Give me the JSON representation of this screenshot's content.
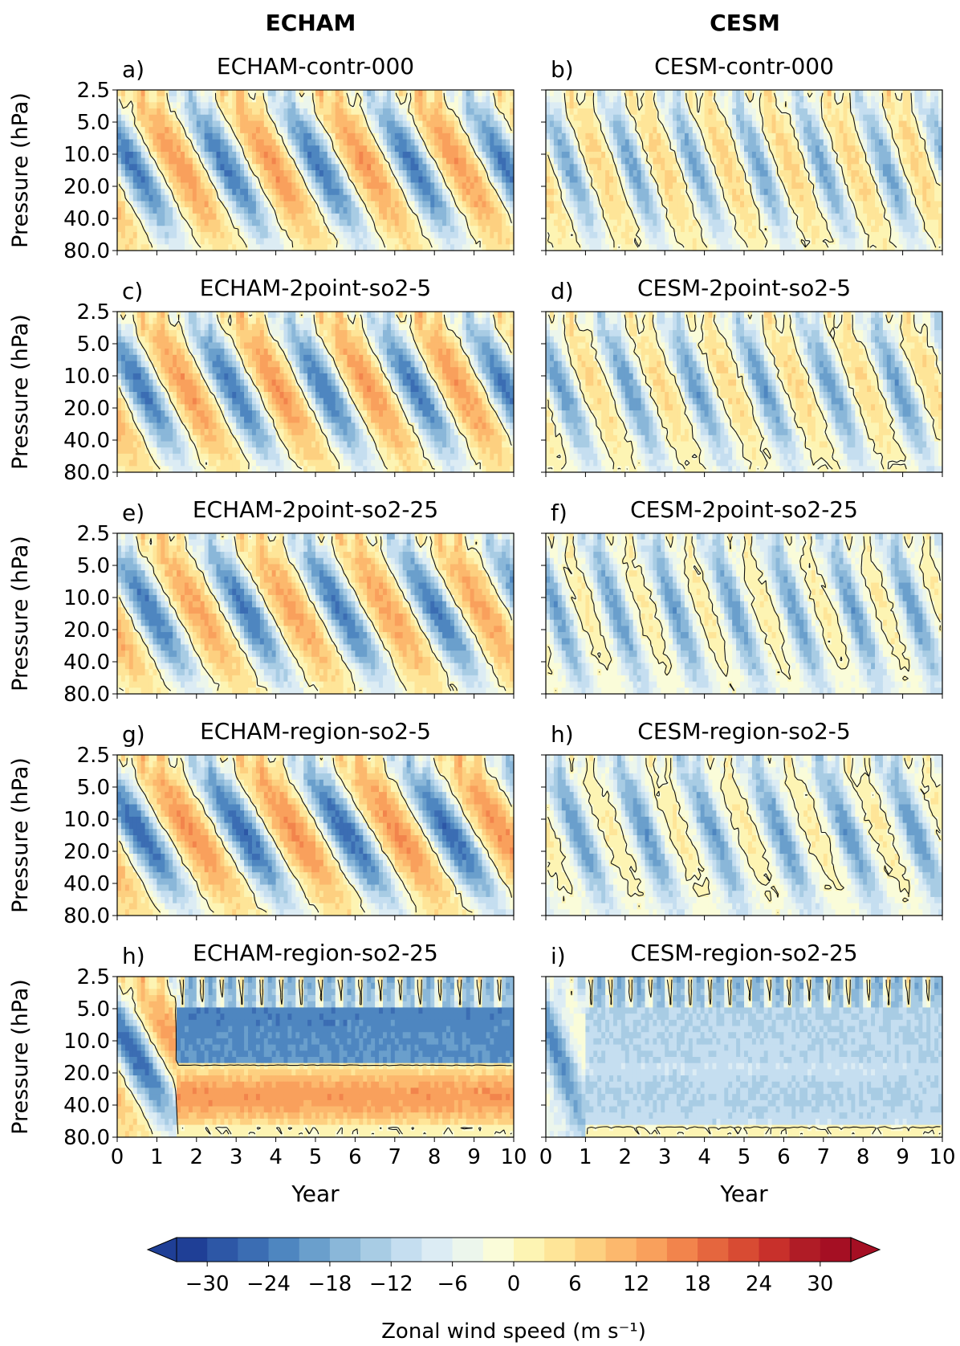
{
  "figure": {
    "column_titles": [
      "ECHAM",
      "CESM"
    ],
    "colorbar": {
      "label": "Zonal wind speed (m s⁻¹)",
      "ticks": [
        "−30",
        "−24",
        "−18",
        "−12",
        "−6",
        "0",
        "6",
        "12",
        "18",
        "24",
        "30"
      ],
      "levels": [
        -33,
        -30,
        -27,
        -24,
        -21,
        -18,
        -15,
        -12,
        -9,
        -6,
        -3,
        0,
        3,
        6,
        9,
        12,
        15,
        18,
        21,
        24,
        27,
        30,
        33
      ],
      "colors": [
        "#1f3f96",
        "#2d57a6",
        "#3b6db3",
        "#4e86c0",
        "#6a9fcc",
        "#8ab7d9",
        "#a8cce4",
        "#c5def0",
        "#dcecf4",
        "#ecf6ec",
        "#fafcd9",
        "#fdf4b3",
        "#fee598",
        "#fdd080",
        "#fcb86d",
        "#f9a05c",
        "#f2844c",
        "#e5663e",
        "#d84b33",
        "#c8302b",
        "#b01c26",
        "#a50f23"
      ],
      "extend": "both"
    }
  },
  "chart_data": [
    {
      "id": "a",
      "panel_label": "a)",
      "title": "ECHAM-contr-000",
      "model": "ECHAM",
      "type": "heatmap",
      "xlabel": "",
      "ylabel": "Pressure (hPa)",
      "xlim": [
        0,
        10
      ],
      "y_ticks": [
        "2.5",
        "5.0",
        "10.0",
        "20.0",
        "40.0",
        "80.0"
      ],
      "y_scale": "log",
      "y_inverted": true,
      "x_ticks": [],
      "contour_levels": [
        0
      ],
      "qbo": {
        "period_years": 2.35,
        "phase_offset_years": 0.0,
        "amplitude_east_ms": 14,
        "amplitude_west_ms": 24,
        "mean_ms": 0,
        "stalled_after_year": null
      }
    },
    {
      "id": "b",
      "panel_label": "b)",
      "title": "CESM-contr-000",
      "model": "CESM",
      "type": "heatmap",
      "xlabel": "",
      "ylabel": "",
      "xlim": [
        0,
        10
      ],
      "y_ticks": [],
      "x_ticks": [],
      "contour_levels": [
        0
      ],
      "qbo": {
        "period_years": 1.6,
        "phase_offset_years": 0.3,
        "amplitude_east_ms": 8,
        "amplitude_west_ms": 18,
        "mean_ms": -1,
        "stalled_after_year": null
      }
    },
    {
      "id": "c",
      "panel_label": "c)",
      "title": "ECHAM-2point-so2-5",
      "model": "ECHAM",
      "type": "heatmap",
      "xlabel": "",
      "ylabel": "Pressure (hPa)",
      "xlim": [
        0,
        10
      ],
      "y_ticks": [
        "2.5",
        "5.0",
        "10.0",
        "20.0",
        "40.0",
        "80.0"
      ],
      "y_scale": "log",
      "y_inverted": true,
      "x_ticks": [],
      "contour_levels": [
        0
      ],
      "qbo": {
        "period_years": 2.3,
        "phase_offset_years": 0.2,
        "amplitude_east_ms": 14,
        "amplitude_west_ms": 24,
        "mean_ms": 0,
        "stalled_after_year": null
      }
    },
    {
      "id": "d",
      "panel_label": "d)",
      "title": "CESM-2point-so2-5",
      "model": "CESM",
      "type": "heatmap",
      "xlabel": "",
      "ylabel": "",
      "xlim": [
        0,
        10
      ],
      "y_ticks": [],
      "x_ticks": [],
      "contour_levels": [
        0
      ],
      "qbo": {
        "period_years": 1.7,
        "phase_offset_years": 0.1,
        "amplitude_east_ms": 8,
        "amplitude_west_ms": 18,
        "mean_ms": -2,
        "stalled_after_year": null
      }
    },
    {
      "id": "e",
      "panel_label": "e)",
      "title": "ECHAM-2point-so2-25",
      "model": "ECHAM",
      "type": "heatmap",
      "xlabel": "",
      "ylabel": "Pressure (hPa)",
      "xlim": [
        0,
        10
      ],
      "y_ticks": [
        "2.5",
        "5.0",
        "10.0",
        "20.0",
        "40.0",
        "80.0"
      ],
      "y_scale": "log",
      "y_inverted": true,
      "x_ticks": [],
      "contour_levels": [
        0
      ],
      "qbo": {
        "period_years": 2.4,
        "phase_offset_years": 0.4,
        "amplitude_east_ms": 13,
        "amplitude_west_ms": 24,
        "mean_ms": 0,
        "stalled_after_year": null
      }
    },
    {
      "id": "f",
      "panel_label": "f)",
      "title": "CESM-2point-so2-25",
      "model": "CESM",
      "type": "heatmap",
      "xlabel": "",
      "ylabel": "",
      "xlim": [
        0,
        10
      ],
      "y_ticks": [],
      "x_ticks": [],
      "contour_levels": [
        0
      ],
      "qbo": {
        "period_years": 1.5,
        "phase_offset_years": 0.0,
        "amplitude_east_ms": 7,
        "amplitude_west_ms": 16,
        "mean_ms": -4,
        "stalled_after_year": null
      }
    },
    {
      "id": "g",
      "panel_label": "g)",
      "title": "ECHAM-region-so2-5",
      "model": "ECHAM",
      "type": "heatmap",
      "xlabel": "",
      "ylabel": "Pressure (hPa)",
      "xlim": [
        0,
        10
      ],
      "y_ticks": [
        "2.5",
        "5.0",
        "10.0",
        "20.0",
        "40.0",
        "80.0"
      ],
      "y_scale": "log",
      "y_inverted": true,
      "x_ticks": [],
      "contour_levels": [
        0
      ],
      "qbo": {
        "period_years": 2.6,
        "phase_offset_years": 0.1,
        "amplitude_east_ms": 15,
        "amplitude_west_ms": 26,
        "mean_ms": 0,
        "stalled_after_year": null
      }
    },
    {
      "id": "h",
      "panel_label": "h)",
      "title": "CESM-region-so2-5",
      "model": "CESM",
      "type": "heatmap",
      "xlabel": "",
      "ylabel": "",
      "xlim": [
        0,
        10
      ],
      "y_ticks": [],
      "x_ticks": [],
      "contour_levels": [
        0
      ],
      "qbo": {
        "period_years": 1.7,
        "phase_offset_years": 0.5,
        "amplitude_east_ms": 7,
        "amplitude_west_ms": 16,
        "mean_ms": -4,
        "stalled_after_year": null
      }
    },
    {
      "id": "h2",
      "panel_label": "h)",
      "title": "ECHAM-region-so2-25",
      "model": "ECHAM",
      "type": "heatmap",
      "xlabel": "Year",
      "ylabel": "Pressure (hPa)",
      "xlim": [
        0,
        10
      ],
      "y_ticks": [
        "2.5",
        "5.0",
        "10.0",
        "20.0",
        "40.0",
        "80.0"
      ],
      "y_scale": "log",
      "y_inverted": true,
      "x_ticks": [
        "0",
        "1",
        "2",
        "3",
        "4",
        "5",
        "6",
        "7",
        "8",
        "9",
        "10"
      ],
      "contour_levels": [
        0
      ],
      "qbo": {
        "period_years": 2.4,
        "phase_offset_years": 0.0,
        "amplitude_east_ms": 14,
        "amplitude_west_ms": 26,
        "mean_ms": 0,
        "stalled_after_year": 1.5
      }
    },
    {
      "id": "i",
      "panel_label": "i)",
      "title": "CESM-region-so2-25",
      "model": "CESM",
      "type": "heatmap",
      "xlabel": "Year",
      "ylabel": "",
      "xlim": [
        0,
        10
      ],
      "y_ticks": [],
      "x_ticks": [
        "0",
        "1",
        "2",
        "3",
        "4",
        "5",
        "6",
        "7",
        "8",
        "9",
        "10"
      ],
      "contour_levels": [
        0
      ],
      "qbo": {
        "period_years": 1.6,
        "phase_offset_years": 0.0,
        "amplitude_east_ms": 7,
        "amplitude_west_ms": 14,
        "mean_ms": -8,
        "stalled_after_year": 1.0
      }
    }
  ]
}
